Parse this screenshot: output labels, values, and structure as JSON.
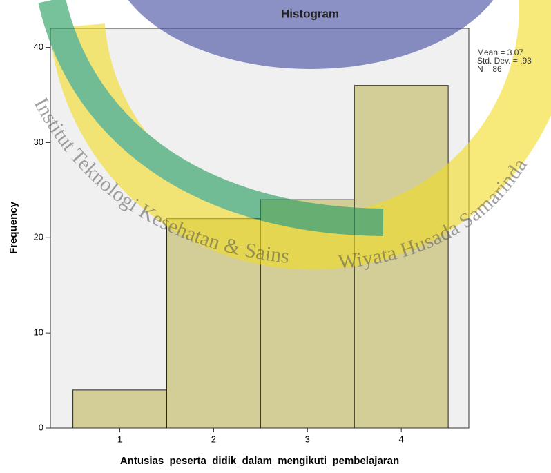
{
  "chart_data": {
    "type": "histogram",
    "title": "Histogram",
    "x_label": "Antusias_peserta_didik_dalam_mengikuti_pembelajaran",
    "y_label": "Frequency",
    "bins": [
      0.5,
      1.5,
      2.5,
      3.5,
      4.5
    ],
    "values": [
      4,
      22,
      24,
      36
    ],
    "color": "#d3cd98",
    "xlim": [
      0.26,
      4.72
    ],
    "xticks": [
      1,
      2,
      3,
      4
    ],
    "ylim": [
      0,
      42
    ],
    "yticks": [
      0,
      10,
      20,
      30,
      40
    ],
    "annotations": [
      "Mean = 3.07",
      "Std. Dev. = .93",
      "N = 86"
    ],
    "watermark": [
      "Institut Teknologi Kesehatan & Sains",
      "Wiyata Husada Samarinda"
    ]
  }
}
